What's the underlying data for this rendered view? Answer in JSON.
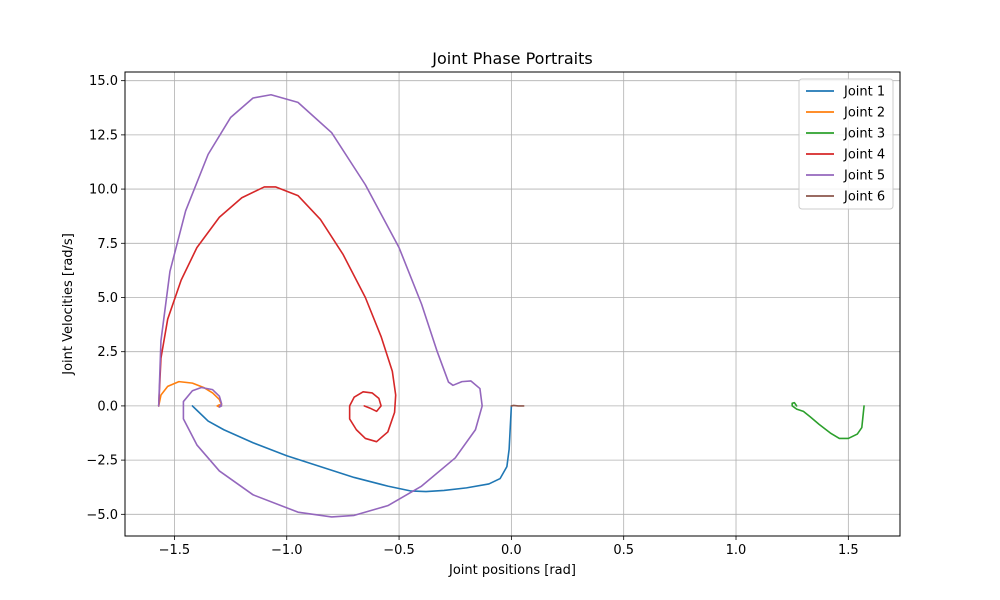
{
  "chart_data": {
    "type": "line",
    "title": "Joint Phase Portraits",
    "xlabel": "Joint positions [rad]",
    "ylabel": "Joint Velocities [rad/s]",
    "xlim": [
      -1.72,
      1.73
    ],
    "ylim": [
      -6.0,
      15.4
    ],
    "xticks": [
      -1.5,
      -1.0,
      -0.5,
      0.0,
      0.5,
      1.0,
      1.5
    ],
    "xtick_labels": [
      "−1.5",
      "−1.0",
      "−0.5",
      "0.0",
      "0.5",
      "1.0",
      "1.5"
    ],
    "yticks": [
      -5.0,
      -2.5,
      0.0,
      2.5,
      5.0,
      7.5,
      10.0,
      12.5,
      15.0
    ],
    "ytick_labels": [
      "−5.0",
      "−2.5",
      "0.0",
      "2.5",
      "5.0",
      "7.5",
      "10.0",
      "12.5",
      "15.0"
    ],
    "grid": true,
    "legend_position": "top-right",
    "series": [
      {
        "name": "Joint 1",
        "color": "#1f77b4",
        "points": [
          [
            -1.42,
            0.0
          ],
          [
            -1.4,
            -0.2
          ],
          [
            -1.35,
            -0.7
          ],
          [
            -1.28,
            -1.1
          ],
          [
            -1.15,
            -1.7
          ],
          [
            -1.0,
            -2.3
          ],
          [
            -0.85,
            -2.8
          ],
          [
            -0.7,
            -3.3
          ],
          [
            -0.55,
            -3.7
          ],
          [
            -0.45,
            -3.92
          ],
          [
            -0.38,
            -3.95
          ],
          [
            -0.3,
            -3.9
          ],
          [
            -0.2,
            -3.78
          ],
          [
            -0.1,
            -3.6
          ],
          [
            -0.05,
            -3.35
          ],
          [
            -0.02,
            -2.8
          ],
          [
            -0.01,
            -2.0
          ],
          [
            -0.005,
            -1.0
          ],
          [
            0.0,
            0.0
          ]
        ]
      },
      {
        "name": "Joint 2",
        "color": "#ff7f0e",
        "points": [
          [
            -1.57,
            0.0
          ],
          [
            -1.56,
            0.5
          ],
          [
            -1.53,
            0.9
          ],
          [
            -1.48,
            1.12
          ],
          [
            -1.42,
            1.05
          ],
          [
            -1.37,
            0.85
          ],
          [
            -1.33,
            0.6
          ],
          [
            -1.3,
            0.3
          ],
          [
            -1.29,
            0.05
          ],
          [
            -1.3,
            -0.05
          ],
          [
            -1.31,
            0.0
          ],
          [
            -1.3,
            0.05
          ]
        ]
      },
      {
        "name": "Joint 3",
        "color": "#2ca02c",
        "points": [
          [
            1.27,
            0.0
          ],
          [
            1.26,
            0.15
          ],
          [
            1.25,
            0.12
          ],
          [
            1.25,
            0.0
          ],
          [
            1.27,
            -0.15
          ],
          [
            1.3,
            -0.25
          ],
          [
            1.33,
            -0.5
          ],
          [
            1.37,
            -0.85
          ],
          [
            1.42,
            -1.25
          ],
          [
            1.46,
            -1.5
          ],
          [
            1.5,
            -1.5
          ],
          [
            1.54,
            -1.3
          ],
          [
            1.56,
            -1.0
          ],
          [
            1.565,
            -0.5
          ],
          [
            1.57,
            0.0
          ]
        ]
      },
      {
        "name": "Joint 4",
        "color": "#d62728",
        "points": [
          [
            -1.57,
            0.0
          ],
          [
            -1.56,
            2.2
          ],
          [
            -1.53,
            4.0
          ],
          [
            -1.47,
            5.8
          ],
          [
            -1.4,
            7.3
          ],
          [
            -1.3,
            8.7
          ],
          [
            -1.2,
            9.6
          ],
          [
            -1.1,
            10.1
          ],
          [
            -1.05,
            10.1
          ],
          [
            -0.95,
            9.7
          ],
          [
            -0.85,
            8.6
          ],
          [
            -0.75,
            7.0
          ],
          [
            -0.65,
            5.0
          ],
          [
            -0.58,
            3.2
          ],
          [
            -0.53,
            1.6
          ],
          [
            -0.515,
            0.5
          ],
          [
            -0.52,
            -0.3
          ],
          [
            -0.55,
            -1.2
          ],
          [
            -0.6,
            -1.65
          ],
          [
            -0.65,
            -1.5
          ],
          [
            -0.69,
            -1.1
          ],
          [
            -0.72,
            -0.6
          ],
          [
            -0.72,
            0.0
          ],
          [
            -0.7,
            0.4
          ],
          [
            -0.66,
            0.65
          ],
          [
            -0.62,
            0.6
          ],
          [
            -0.59,
            0.35
          ],
          [
            -0.58,
            0.0
          ],
          [
            -0.6,
            -0.25
          ],
          [
            -0.63,
            -0.1
          ],
          [
            -0.655,
            0.0
          ]
        ]
      },
      {
        "name": "Joint 5",
        "color": "#9467bd",
        "points": [
          [
            -1.57,
            0.0
          ],
          [
            -1.56,
            3.0
          ],
          [
            -1.52,
            6.2
          ],
          [
            -1.45,
            9.0
          ],
          [
            -1.35,
            11.6
          ],
          [
            -1.25,
            13.3
          ],
          [
            -1.15,
            14.2
          ],
          [
            -1.07,
            14.35
          ],
          [
            -0.95,
            14.0
          ],
          [
            -0.8,
            12.6
          ],
          [
            -0.65,
            10.2
          ],
          [
            -0.5,
            7.3
          ],
          [
            -0.4,
            4.7
          ],
          [
            -0.33,
            2.5
          ],
          [
            -0.28,
            1.1
          ],
          [
            -0.26,
            0.95
          ],
          [
            -0.22,
            1.12
          ],
          [
            -0.18,
            1.15
          ],
          [
            -0.14,
            0.8
          ],
          [
            -0.13,
            0.0
          ],
          [
            -0.16,
            -1.1
          ],
          [
            -0.25,
            -2.4
          ],
          [
            -0.4,
            -3.7
          ],
          [
            -0.55,
            -4.6
          ],
          [
            -0.7,
            -5.05
          ],
          [
            -0.8,
            -5.12
          ],
          [
            -0.95,
            -4.9
          ],
          [
            -1.15,
            -4.1
          ],
          [
            -1.3,
            -3.0
          ],
          [
            -1.4,
            -1.8
          ],
          [
            -1.46,
            -0.6
          ],
          [
            -1.46,
            0.2
          ],
          [
            -1.42,
            0.7
          ],
          [
            -1.38,
            0.85
          ],
          [
            -1.33,
            0.75
          ],
          [
            -1.3,
            0.45
          ],
          [
            -1.29,
            0.1
          ],
          [
            -1.3,
            -0.05
          ],
          [
            -1.29,
            0.0
          ]
        ]
      },
      {
        "name": "Joint 6",
        "color": "#8c564b",
        "points": [
          [
            0.0,
            0.0
          ],
          [
            0.01,
            0.02
          ],
          [
            0.03,
            0.0
          ],
          [
            0.055,
            0.0
          ]
        ]
      }
    ]
  }
}
